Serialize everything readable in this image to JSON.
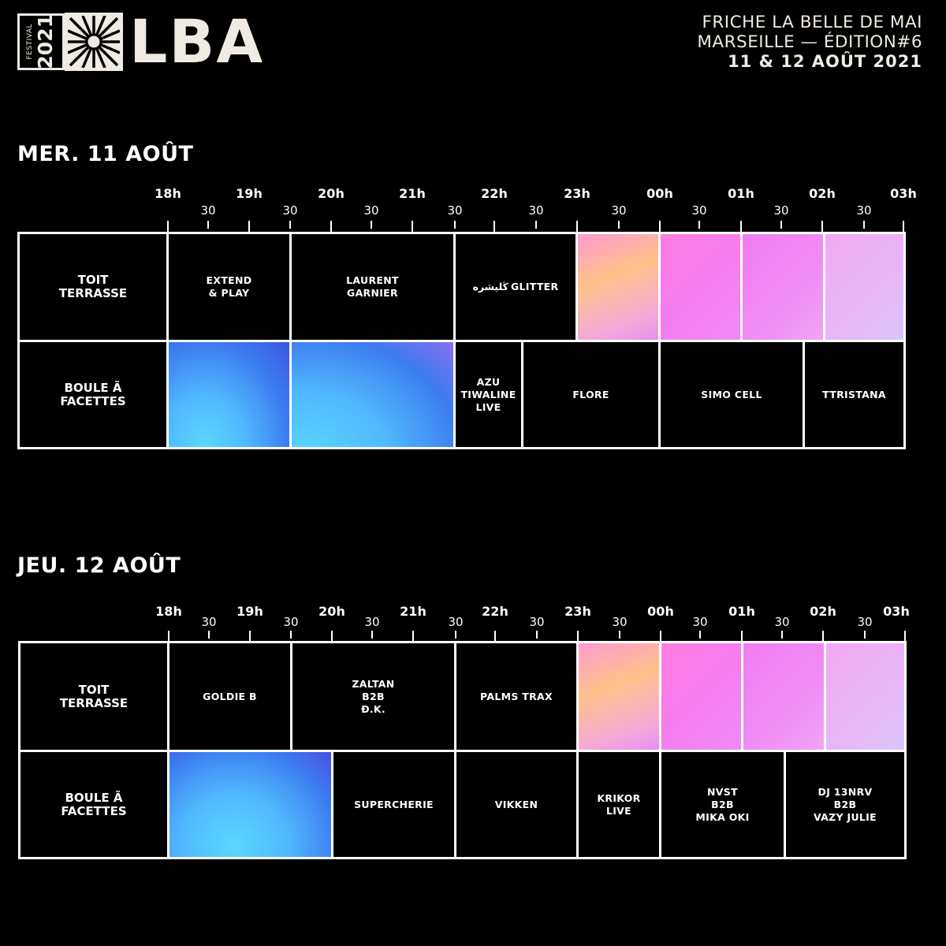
{
  "header": {
    "logo_label": "FESTIVAL",
    "logo_year": "2021",
    "logo_name": "LBA",
    "venue_line1": "FRICHE LA BELLE DE MAI",
    "venue_line2": "MARSEILLE — ÉDITION#6",
    "dates": "11 & 12 AOÛT 2021"
  },
  "days": [
    {
      "title": "MER. 11 AOÛT",
      "hours": [
        "18h",
        "19h",
        "20h",
        "21h",
        "22h",
        "23h",
        "00h",
        "01h",
        "02h",
        "03h"
      ],
      "half_label": "30",
      "rows": [
        {
          "stage": "TOIT\nTERRASSE",
          "sets": [
            {
              "artist": "EXTEND\n& PLAY"
            },
            {
              "artist": "LAURENT\nGARNIER"
            },
            {
              "artist": "ڭليشره GLITTER"
            }
          ]
        },
        {
          "stage": "BOULE Ã\nFACETTES",
          "sets": [
            {
              "artist": "AZU\nTIWALINE\nLIVE"
            },
            {
              "artist": "FLORE"
            },
            {
              "artist": "SIMO CELL"
            },
            {
              "artist": "TTRISTANA"
            }
          ]
        }
      ]
    },
    {
      "title": "JEU. 12 AOÛT",
      "hours": [
        "18h",
        "19h",
        "20h",
        "21h",
        "22h",
        "23h",
        "00h",
        "01h",
        "02h",
        "03h"
      ],
      "half_label": "30",
      "rows": [
        {
          "stage": "TOIT\nTERRASSE",
          "sets": [
            {
              "artist": "GOLDIE B"
            },
            {
              "artist": "ZALTAN\nB2B\nÐ.K."
            },
            {
              "artist": "PALMS TRAX"
            }
          ]
        },
        {
          "stage": "BOULE Ã\nFACETTES",
          "sets": [
            {
              "artist": "SUPERCHERIE"
            },
            {
              "artist": "VIKKEN"
            },
            {
              "artist": "KRIKOR\nLIVE"
            },
            {
              "artist": "NVST\nB2B\nMIKA OKI"
            },
            {
              "artist": "DJ 13NRV\nB2B\nVAZY JULIE"
            }
          ]
        }
      ]
    }
  ]
}
